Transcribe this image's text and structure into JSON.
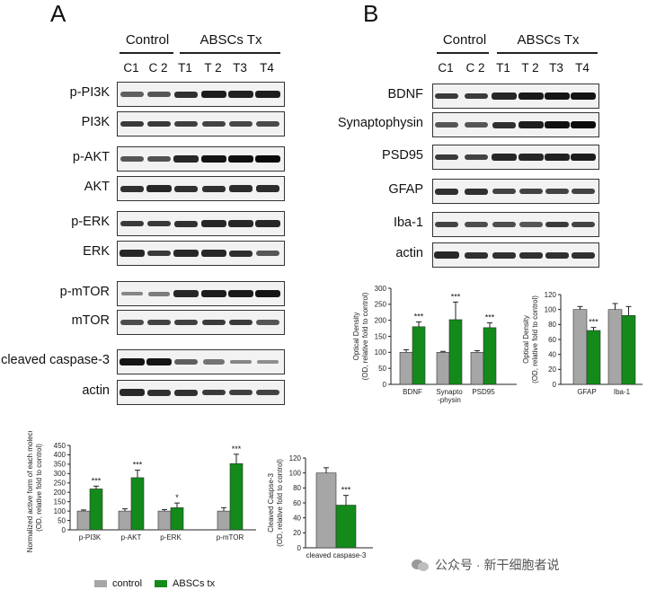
{
  "panel_a": {
    "letter": "A",
    "groups": {
      "control": "Control",
      "treated": "ABSCs Tx"
    },
    "lanes": [
      "C1",
      "C 2",
      "T1",
      "T 2",
      "T3",
      "T4"
    ],
    "blots": [
      {
        "label": "p-PI3K",
        "intensities": [
          0.55,
          0.6,
          0.8,
          0.9,
          0.88,
          0.9
        ]
      },
      {
        "label": "PI3K",
        "intensities": [
          0.75,
          0.75,
          0.72,
          0.7,
          0.68,
          0.66
        ]
      },
      {
        "label": "p-AKT",
        "intensities": [
          0.6,
          0.62,
          0.85,
          0.95,
          0.97,
          1.0
        ]
      },
      {
        "label": "AKT",
        "intensities": [
          0.8,
          0.85,
          0.8,
          0.8,
          0.82,
          0.82
        ]
      },
      {
        "label": "p-ERK",
        "intensities": [
          0.75,
          0.75,
          0.8,
          0.85,
          0.85,
          0.85
        ]
      },
      {
        "label": "ERK",
        "intensities": [
          0.85,
          0.75,
          0.85,
          0.85,
          0.8,
          0.6
        ]
      },
      {
        "label": "p-mTOR",
        "intensities": [
          0.35,
          0.4,
          0.85,
          0.9,
          0.92,
          0.95
        ]
      },
      {
        "label": "mTOR",
        "intensities": [
          0.65,
          0.7,
          0.72,
          0.75,
          0.75,
          0.6
        ]
      },
      {
        "label": "cleaved caspase-3",
        "intensities": [
          0.95,
          0.95,
          0.55,
          0.45,
          0.35,
          0.3
        ]
      },
      {
        "label": "actin",
        "intensities": [
          0.85,
          0.8,
          0.8,
          0.75,
          0.72,
          0.7
        ]
      }
    ]
  },
  "panel_b": {
    "letter": "B",
    "groups": {
      "control": "Control",
      "treated": "ABSCs Tx"
    },
    "lanes": [
      "C1",
      "C 2",
      "T1",
      "T 2",
      "T3",
      "T4"
    ],
    "blots": [
      {
        "label": "BDNF",
        "intensities": [
          0.75,
          0.75,
          0.85,
          0.92,
          0.95,
          0.95
        ]
      },
      {
        "label": "Synaptophysin",
        "intensities": [
          0.6,
          0.6,
          0.8,
          0.9,
          0.97,
          1.0
        ]
      },
      {
        "label": "PSD95",
        "intensities": [
          0.75,
          0.7,
          0.85,
          0.85,
          0.88,
          0.9
        ]
      },
      {
        "label": "GFAP",
        "intensities": [
          0.8,
          0.8,
          0.7,
          0.7,
          0.7,
          0.7
        ]
      },
      {
        "label": "Iba-1",
        "intensities": [
          0.7,
          0.65,
          0.65,
          0.6,
          0.75,
          0.7
        ]
      },
      {
        "label": "actin",
        "intensities": [
          0.85,
          0.8,
          0.8,
          0.8,
          0.8,
          0.8
        ]
      }
    ]
  },
  "legend": {
    "control": "control",
    "treated": "ABSCs tx"
  },
  "colors": {
    "control": "#a6a6a6",
    "treated": "#138a1a"
  },
  "watermark": "公众号 · 新干细胞者说",
  "chart_data": [
    {
      "id": "a_phospho",
      "type": "bar",
      "ylabel": "Normalized active form of each molecule (OD, relative fold to control)",
      "ylim": [
        0,
        450
      ],
      "yticks": [
        0,
        50,
        100,
        150,
        200,
        250,
        300,
        350,
        400,
        450
      ],
      "categories": [
        "p-PI3K",
        "p-AKT",
        "p-ERK",
        "p-mTOR"
      ],
      "series": [
        {
          "name": "control",
          "values": [
            100,
            100,
            100,
            100
          ],
          "errors": [
            6,
            12,
            8,
            18
          ]
        },
        {
          "name": "ABSCs tx",
          "values": [
            218,
            278,
            118,
            353
          ],
          "errors": [
            15,
            40,
            25,
            50
          ]
        }
      ],
      "significance": [
        "***",
        "***",
        "*",
        "***"
      ]
    },
    {
      "id": "a_caspase",
      "type": "bar",
      "ylabel": "Cleaved Caspse-3 (OD, relative fold to control)",
      "ylim": [
        0,
        120
      ],
      "yticks": [
        0,
        20,
        40,
        60,
        80,
        100,
        120
      ],
      "categories": [
        "cleaved caspase-3"
      ],
      "series": [
        {
          "name": "control",
          "values": [
            100
          ],
          "errors": [
            7
          ]
        },
        {
          "name": "ABSCs tx",
          "values": [
            57
          ],
          "errors": [
            13
          ]
        }
      ],
      "significance": [
        "***"
      ]
    },
    {
      "id": "b_neuro",
      "type": "bar",
      "ylabel": "Optical Density (OD, relative fold to control)",
      "ylim": [
        0,
        300
      ],
      "yticks": [
        0,
        50,
        100,
        150,
        200,
        250,
        300
      ],
      "categories": [
        "BDNF",
        "Synapto -physin",
        "PSD95"
      ],
      "series": [
        {
          "name": "control",
          "values": [
            100,
            100,
            100
          ],
          "errors": [
            8,
            3,
            5
          ]
        },
        {
          "name": "ABSCs tx",
          "values": [
            180,
            202,
            177
          ],
          "errors": [
            15,
            55,
            15
          ]
        }
      ],
      "significance": [
        "***",
        "***",
        "***"
      ]
    },
    {
      "id": "b_glia",
      "type": "bar",
      "ylabel": "Optical Density (OD, relative fold to control)",
      "ylim": [
        0,
        120
      ],
      "yticks": [
        0,
        20,
        40,
        60,
        80,
        100,
        120
      ],
      "categories": [
        "GFAP",
        "Iba-1"
      ],
      "series": [
        {
          "name": "control",
          "values": [
            100,
            100
          ],
          "errors": [
            4,
            8
          ]
        },
        {
          "name": "ABSCs tx",
          "values": [
            72,
            92
          ],
          "errors": [
            4,
            12
          ]
        }
      ],
      "significance": [
        "***",
        ""
      ]
    }
  ]
}
